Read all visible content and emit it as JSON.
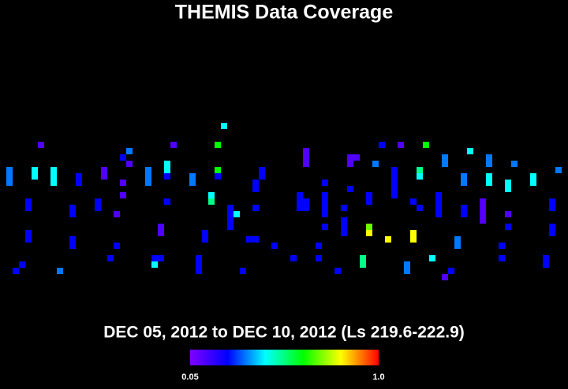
{
  "chart_data": {
    "type": "heatmap",
    "title": "THEMIS Data Coverage",
    "subtitle": "DEC 05, 2012 to DEC 10, 2012 (Ls 219.6-222.9)",
    "xlim": [
      0,
      90
    ],
    "ylim": [
      60,
      0
    ],
    "x": [
      35,
      6,
      27,
      34,
      60,
      63,
      67,
      74,
      20,
      19,
      20,
      48,
      48,
      48,
      55,
      56,
      55,
      59,
      70,
      70,
      77,
      77,
      81,
      1,
      1,
      1,
      5,
      5,
      8,
      8,
      8,
      12,
      12,
      16,
      16,
      23,
      23,
      23,
      26,
      26,
      26,
      30,
      30,
      34,
      34,
      41,
      41,
      40,
      40,
      62,
      62,
      62,
      62,
      62,
      66,
      66,
      73,
      73,
      77,
      77,
      80,
      80,
      84,
      84,
      88,
      19,
      19,
      51,
      55,
      4,
      4,
      11,
      11,
      15,
      15,
      18,
      26,
      33,
      33,
      36,
      36,
      36,
      36,
      37,
      40,
      47,
      47,
      47,
      48,
      48,
      51,
      51,
      51,
      51,
      54,
      58,
      58,
      65,
      66,
      69,
      69,
      69,
      69,
      73,
      73,
      76,
      76,
      76,
      76,
      80,
      87,
      87,
      51,
      54,
      54,
      54,
      58,
      58,
      61,
      65,
      65,
      72,
      72,
      80,
      87,
      87,
      25,
      25,
      32,
      32,
      39,
      40,
      4,
      4,
      11,
      11,
      18,
      43,
      50,
      79,
      17,
      24,
      25,
      24,
      31,
      31,
      31,
      46,
      50,
      57,
      57,
      68,
      79,
      86,
      86,
      64,
      64,
      71,
      70,
      3,
      2,
      9,
      38,
      53
    ],
    "y": [
      20,
      23,
      23,
      23,
      23,
      23,
      23,
      24,
      24,
      25,
      26,
      24,
      25,
      26,
      25,
      25,
      26,
      26,
      25,
      26,
      25,
      26,
      26,
      27,
      28,
      29,
      27,
      28,
      27,
      28,
      29,
      28,
      29,
      27,
      28,
      27,
      28,
      29,
      26,
      27,
      28,
      28,
      29,
      27,
      28,
      27,
      28,
      29,
      30,
      27,
      28,
      29,
      30,
      31,
      27,
      28,
      28,
      29,
      28,
      29,
      29,
      30,
      28,
      29,
      27,
      29,
      31,
      29,
      30,
      32,
      33,
      33,
      34,
      32,
      33,
      34,
      32,
      31,
      32,
      33,
      34,
      35,
      36,
      34,
      33,
      31,
      32,
      33,
      32,
      33,
      31,
      32,
      33,
      34,
      33,
      31,
      32,
      32,
      33,
      31,
      32,
      33,
      34,
      33,
      34,
      32,
      33,
      34,
      35,
      34,
      32,
      33,
      36,
      35,
      36,
      37,
      36,
      37,
      38,
      37,
      38,
      38,
      39,
      36,
      36,
      37,
      36,
      37,
      37,
      38,
      38,
      38,
      37,
      38,
      38,
      39,
      39,
      39,
      39,
      39,
      41,
      41,
      41,
      42,
      41,
      42,
      43,
      41,
      41,
      41,
      42,
      41,
      41,
      41,
      42,
      42,
      43,
      43,
      44,
      42,
      43,
      43,
      43,
      43
    ],
    "values": [
      0.43,
      0.12,
      0.12,
      0.62,
      0.24,
      0.12,
      0.62,
      0.43,
      0.33,
      0.24,
      0.12,
      0.12,
      0.12,
      0.12,
      0.12,
      0.12,
      0.12,
      0.33,
      0.33,
      0.33,
      0.33,
      0.33,
      0.33,
      0.33,
      0.33,
      0.33,
      0.43,
      0.43,
      0.43,
      0.43,
      0.43,
      0.24,
      0.24,
      0.12,
      0.12,
      0.33,
      0.33,
      0.33,
      0.43,
      0.43,
      0.24,
      0.33,
      0.33,
      0.62,
      0.24,
      0.24,
      0.24,
      0.24,
      0.24,
      0.24,
      0.24,
      0.24,
      0.24,
      0.24,
      0.52,
      0.43,
      0.33,
      0.33,
      0.43,
      0.43,
      0.43,
      0.43,
      0.43,
      0.43,
      0.33,
      0.12,
      0.12,
      0.24,
      0.24,
      0.24,
      0.24,
      0.24,
      0.24,
      0.24,
      0.24,
      0.12,
      0.24,
      0.43,
      0.52,
      0.24,
      0.24,
      0.24,
      0.24,
      0.43,
      0.24,
      0.24,
      0.24,
      0.24,
      0.24,
      0.24,
      0.24,
      0.24,
      0.24,
      0.24,
      0.24,
      0.24,
      0.24,
      0.24,
      0.24,
      0.24,
      0.24,
      0.24,
      0.24,
      0.24,
      0.24,
      0.12,
      0.12,
      0.12,
      0.12,
      0.12,
      0.24,
      0.24,
      0.24,
      0.24,
      0.24,
      0.24,
      0.7,
      0.81,
      0.81,
      0.81,
      0.81,
      0.33,
      0.33,
      0.24,
      0.24,
      0.24,
      0.12,
      0.12,
      0.24,
      0.24,
      0.24,
      0.24,
      0.24,
      0.24,
      0.24,
      0.24,
      0.24,
      0.24,
      0.24,
      0.24,
      0.24,
      0.24,
      0.24,
      0.43,
      0.24,
      0.24,
      0.24,
      0.24,
      0.24,
      0.52,
      0.52,
      0.43,
      0.24,
      0.24,
      0.24,
      0.33,
      0.33,
      0.24,
      0.12,
      0.24,
      0.24,
      0.33,
      0.24,
      0.24
    ],
    "clim": [
      0.05,
      1
    ],
    "cticks": [
      0.05,
      {
        "value": 1,
        "label": "1.0"
      }
    ],
    "colormap": [
      "#8000ff",
      "#0000ff",
      "#00ffff",
      "#00ff00",
      "#ffff00",
      "#ff0000"
    ]
  }
}
